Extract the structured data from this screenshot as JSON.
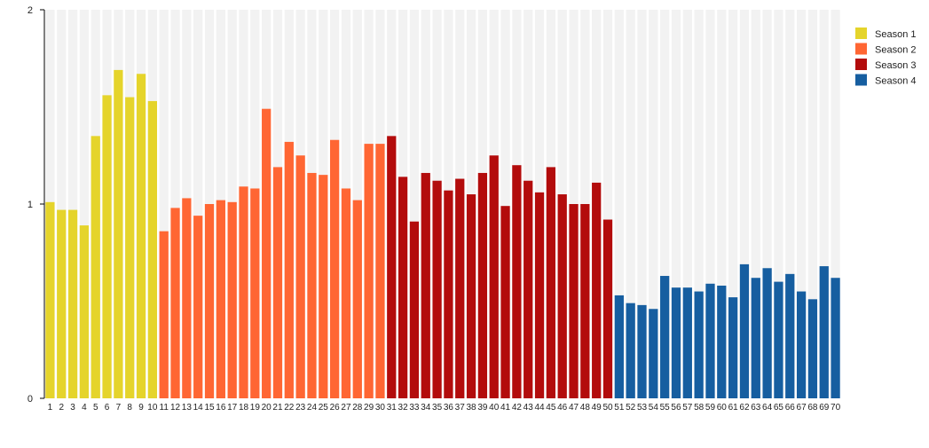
{
  "chart_data": {
    "type": "bar",
    "title": "",
    "xlabel": "",
    "ylabel": "",
    "ylim": [
      0,
      2
    ],
    "yticks": [
      "0",
      "1",
      "2"
    ],
    "grid": false,
    "legend_position": "top-right",
    "categories": [
      "1",
      "2",
      "3",
      "4",
      "5",
      "6",
      "7",
      "8",
      "9",
      "10",
      "11",
      "12",
      "13",
      "14",
      "15",
      "16",
      "17",
      "18",
      "19",
      "20",
      "21",
      "22",
      "23",
      "24",
      "25",
      "26",
      "27",
      "28",
      "29",
      "30",
      "31",
      "32",
      "33",
      "34",
      "35",
      "36",
      "37",
      "38",
      "39",
      "40",
      "41",
      "42",
      "43",
      "44",
      "45",
      "46",
      "47",
      "48",
      "49",
      "50",
      "51",
      "52",
      "53",
      "54",
      "55",
      "56",
      "57",
      "58",
      "59",
      "60",
      "61",
      "62",
      "63",
      "64",
      "65",
      "66",
      "67",
      "68",
      "69",
      "70"
    ],
    "values": [
      1.01,
      0.97,
      0.97,
      0.89,
      1.35,
      1.56,
      1.69,
      1.55,
      1.67,
      1.53,
      0.86,
      0.98,
      1.03,
      0.94,
      1.0,
      1.02,
      1.01,
      1.09,
      1.08,
      1.49,
      1.19,
      1.32,
      1.25,
      1.16,
      1.15,
      1.33,
      1.08,
      1.02,
      1.31,
      1.31,
      1.35,
      1.14,
      0.91,
      1.16,
      1.12,
      1.07,
      1.13,
      1.05,
      1.16,
      1.25,
      0.99,
      1.2,
      1.12,
      1.06,
      1.19,
      1.05,
      1.0,
      1.0,
      1.11,
      0.92,
      0.53,
      0.49,
      0.48,
      0.46,
      0.63,
      0.57,
      0.57,
      0.55,
      0.59,
      0.58,
      0.52,
      0.69,
      0.62,
      0.67,
      0.6,
      0.64,
      0.55,
      0.51,
      0.68,
      0.62
    ],
    "series": [
      {
        "name": "Season 1",
        "color": "#e5d42b",
        "range": [
          1,
          10
        ]
      },
      {
        "name": "Season 2",
        "color": "#ff6633",
        "range": [
          11,
          30
        ]
      },
      {
        "name": "Season 3",
        "color": "#b30c0c",
        "range": [
          31,
          50
        ]
      },
      {
        "name": "Season 4",
        "color": "#165ea0",
        "range": [
          51,
          70
        ]
      }
    ],
    "column_background": "#f2f2f2"
  }
}
